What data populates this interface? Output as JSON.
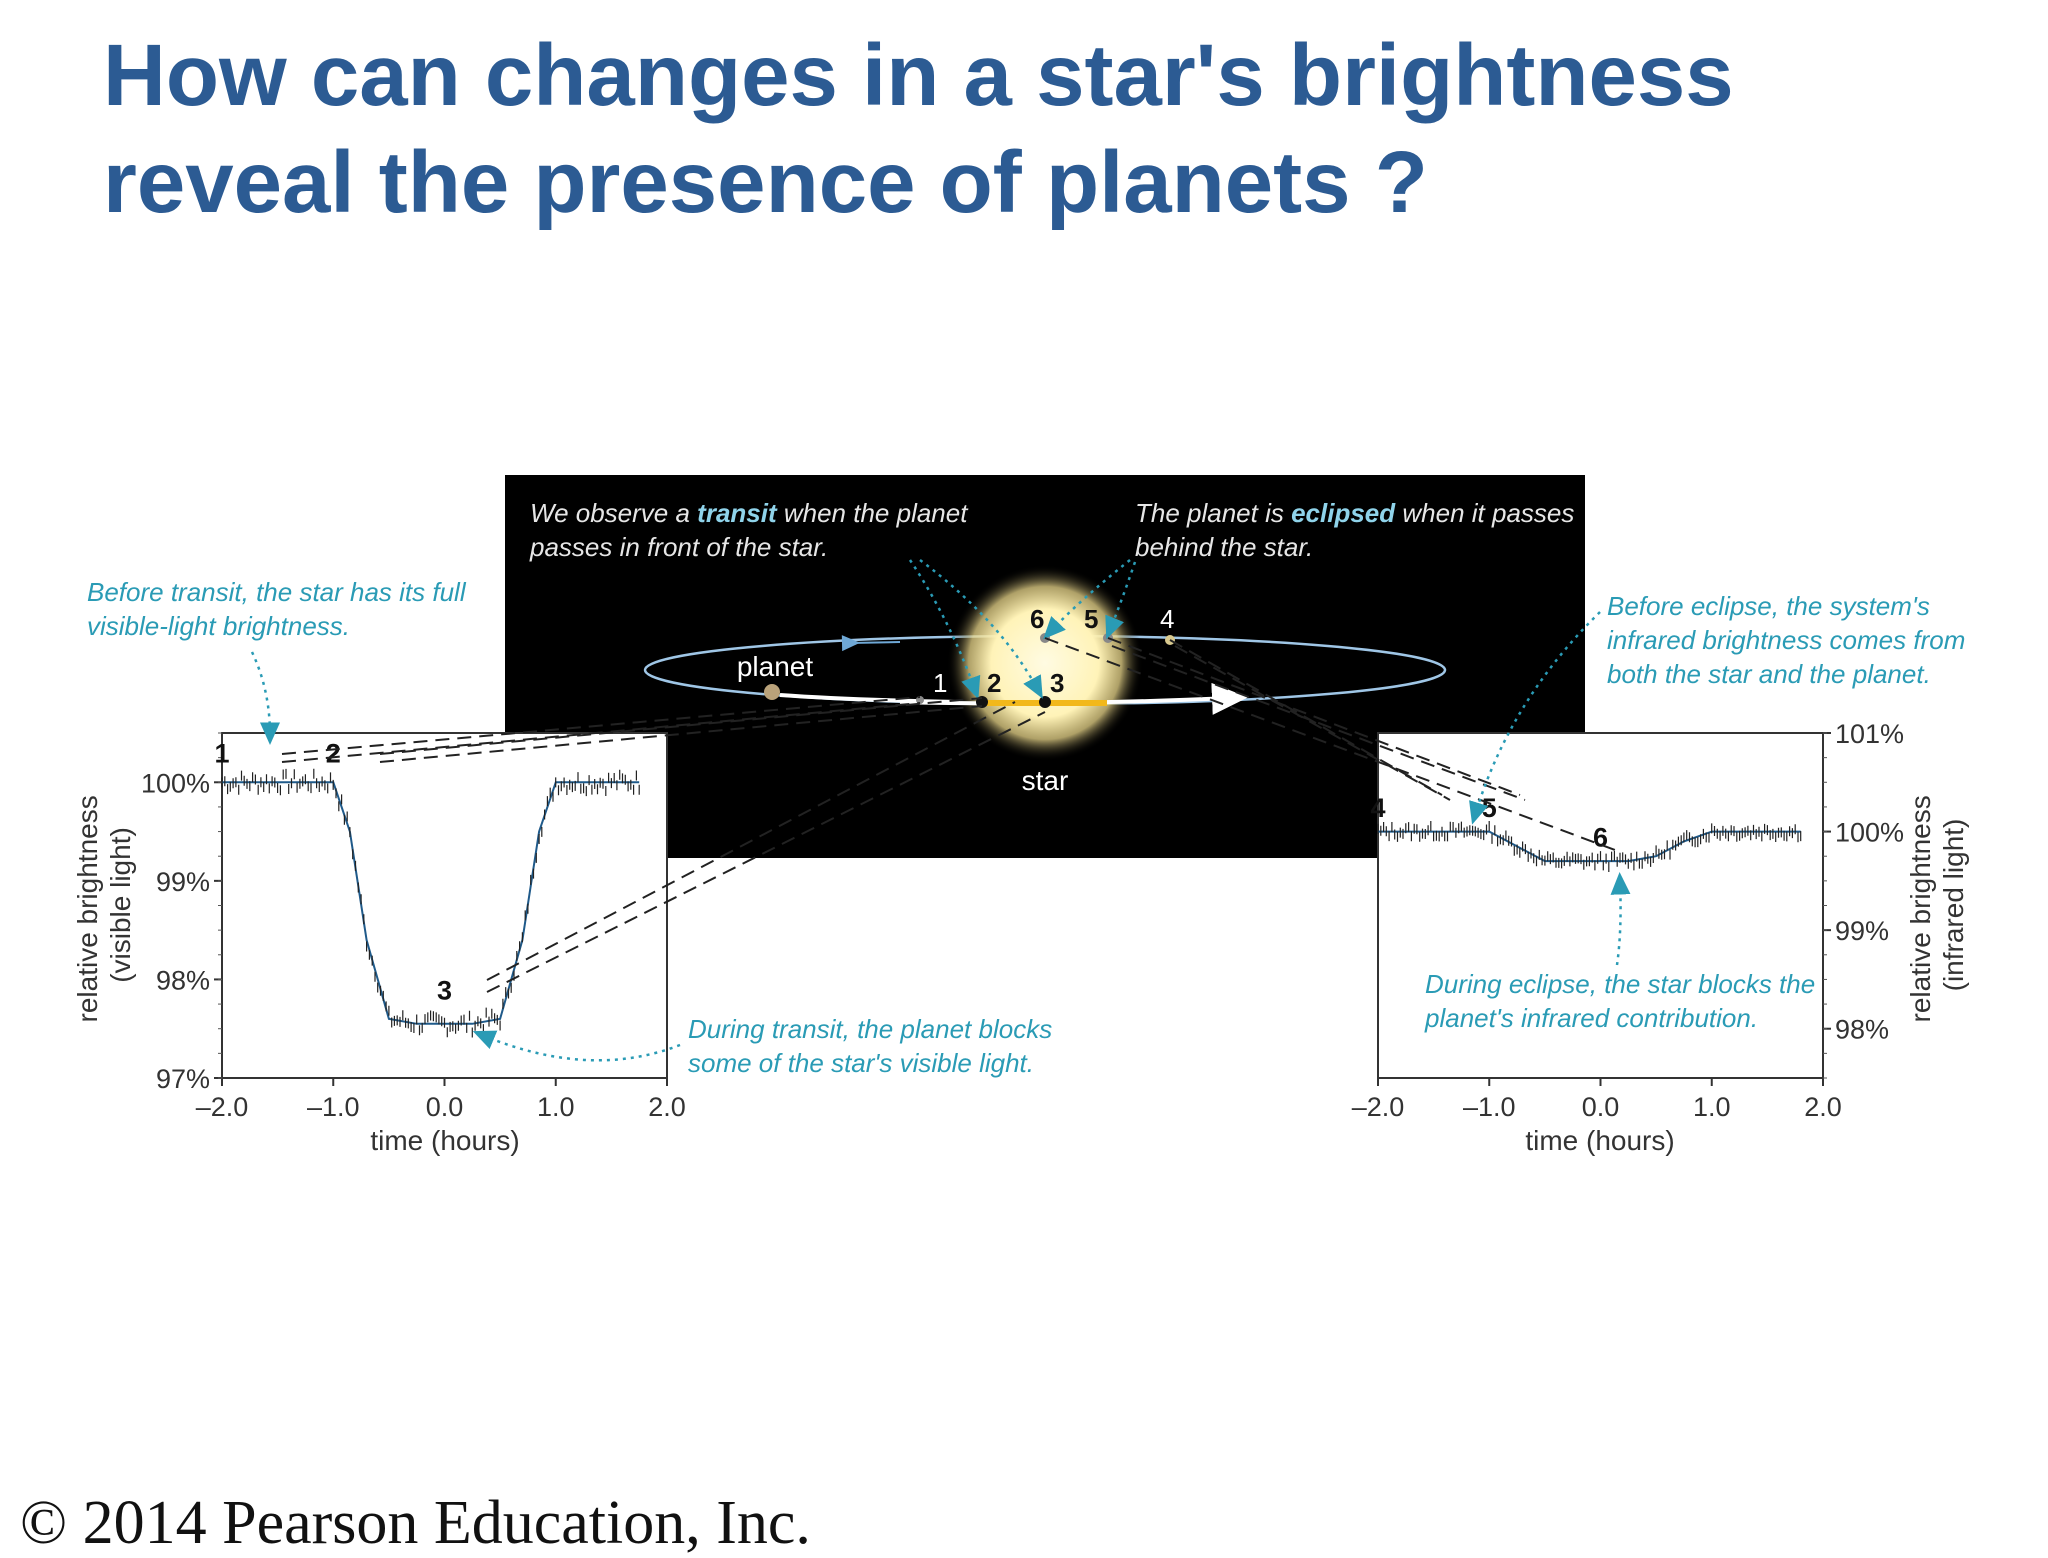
{
  "title": {
    "line1": "How can changes in a star's brightness",
    "line2": "reveal the presence of planets ?"
  },
  "footer": {
    "copyright": "© 2014 Pearson Education, Inc."
  },
  "colors": {
    "title": "#2c5b93",
    "caption": "#2a9bb5",
    "diagram_bg": "#000000",
    "star_glow": "#fff7c8",
    "transit_path": "#f2b81b"
  },
  "diagram": {
    "transit_caption": {
      "pre": "We observe a ",
      "bold": "transit",
      "post": " when the planet",
      "line2": "passes in front of the star."
    },
    "eclipse_caption": {
      "pre": "The planet is ",
      "bold": "eclipsed",
      "post": " when it passes",
      "line2": "behind the star."
    },
    "planet_label": "planet",
    "star_label": "star",
    "positions": [
      "1",
      "2",
      "3",
      "4",
      "5",
      "6"
    ]
  },
  "annotations": {
    "before_transit": [
      "Before transit, the star has its full",
      "visible-light brightness."
    ],
    "during_transit": [
      "During transit, the planet blocks",
      "some of the star's visible light."
    ],
    "before_eclipse": [
      "Before eclipse, the system's",
      "infrared brightness comes from",
      "both the star and the planet."
    ],
    "during_eclipse": [
      "During eclipse, the star blocks the",
      "planet's infrared contribution."
    ]
  },
  "chart_data": [
    {
      "type": "line",
      "title": "",
      "xlabel": "time (hours)",
      "ylabel": "relative brightness (visible light)",
      "xlim": [
        -2.0,
        2.0
      ],
      "ylim": [
        97,
        100.5
      ],
      "xticks": [
        "–2.0",
        "–1.0",
        "0.0",
        "1.0",
        "2.0"
      ],
      "yticks": [
        "97%",
        "98%",
        "99%",
        "100%"
      ],
      "series": [
        {
          "x": [
            -2.0,
            -1.5,
            -1.0,
            -0.85,
            -0.7,
            -0.5,
            -0.25,
            0.0,
            0.25,
            0.5,
            0.7,
            0.85,
            1.0,
            1.5,
            1.75
          ],
          "y": [
            100.0,
            100.0,
            100.0,
            99.5,
            98.4,
            97.6,
            97.55,
            97.55,
            97.55,
            97.6,
            98.4,
            99.5,
            100.0,
            100.0,
            100.0
          ]
        }
      ],
      "point_labels": [
        {
          "label": "1",
          "x": -2.0,
          "y": 100.3
        },
        {
          "label": "2",
          "x": -1.0,
          "y": 100.3
        },
        {
          "label": "3",
          "x": 0.0,
          "y": 97.9
        }
      ]
    },
    {
      "type": "line",
      "title": "",
      "xlabel": "time (hours)",
      "ylabel": "relative brightness (infrared light)",
      "xlim": [
        -2.0,
        2.0
      ],
      "ylim": [
        97.5,
        101
      ],
      "xticks": [
        "–2.0",
        "–1.0",
        "0.0",
        "1.0",
        "2.0"
      ],
      "yticks": [
        "101%",
        "100%",
        "99%",
        "98%"
      ],
      "series": [
        {
          "x": [
            -2.0,
            -1.5,
            -1.0,
            -0.75,
            -0.5,
            -0.25,
            0.0,
            0.25,
            0.5,
            0.75,
            1.0,
            1.5,
            1.8
          ],
          "y": [
            100.0,
            100.0,
            100.0,
            99.85,
            99.7,
            99.7,
            99.7,
            99.7,
            99.75,
            99.9,
            100.0,
            100.0,
            100.0
          ]
        }
      ],
      "point_labels": [
        {
          "label": "4",
          "x": -2.0,
          "y": 100.25
        },
        {
          "label": "5",
          "x": -1.0,
          "y": 100.25
        },
        {
          "label": "6",
          "x": 0.0,
          "y": 99.95
        }
      ]
    }
  ]
}
